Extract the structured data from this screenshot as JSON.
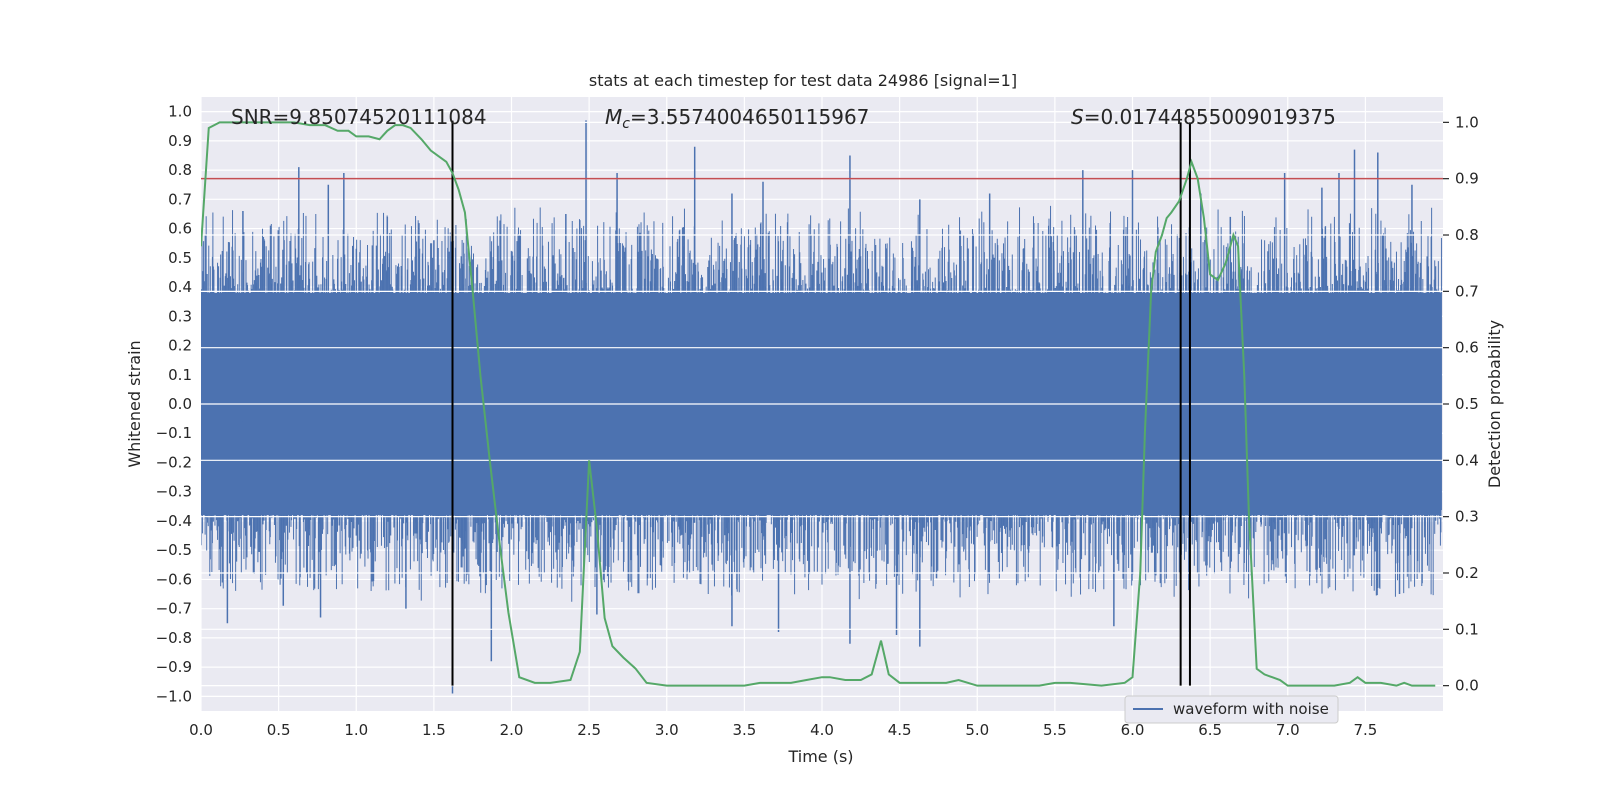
{
  "chart_data": {
    "type": "line",
    "title": "stats at each timestep for test data 24986 [signal=1]",
    "xlabel": "Time (s)",
    "ylabel": "Whitened strain",
    "y2label": "Detection probability",
    "xlim": [
      0,
      8
    ],
    "ylim": [
      -1.05,
      1.05
    ],
    "y2lim": [
      -0.045,
      1.045
    ],
    "xticks": [
      0.0,
      0.5,
      1.0,
      1.5,
      2.0,
      2.5,
      3.0,
      3.5,
      4.0,
      4.5,
      5.0,
      5.5,
      6.0,
      6.5,
      7.0,
      7.5
    ],
    "yticks": [
      -1.0,
      -0.9,
      -0.8,
      -0.7,
      -0.6,
      -0.5,
      -0.4,
      -0.3,
      -0.2,
      -0.1,
      0.0,
      0.1,
      0.2,
      0.3,
      0.4,
      0.5,
      0.6,
      0.7,
      0.8,
      0.9,
      1.0
    ],
    "y2ticks": [
      0.0,
      0.1,
      0.2,
      0.3,
      0.4,
      0.5,
      0.6,
      0.7,
      0.8,
      0.9,
      1.0
    ],
    "grid": true,
    "legend": {
      "location": "lower-right",
      "entries": [
        "waveform with noise"
      ]
    },
    "annotations": {
      "snr": "SNR=9.85074520111084",
      "mc_symbol": "M",
      "mc_sub": "c",
      "mc_value": "=3.5574004650115967",
      "s_symbol": "S",
      "s_value": "=0.01744855009019375"
    },
    "threshold": {
      "axis": "right",
      "value": 0.9,
      "color": "#c44e52"
    },
    "vlines": [
      1.62,
      6.31,
      6.37
    ],
    "waveform": {
      "name": "waveform with noise",
      "color": "#4c72b0",
      "t_start": 0.0,
      "t_end": 7.99,
      "dense_band": [
        -0.38,
        0.38
      ],
      "peaks_upper": [
        [
          0.27,
          0.66
        ],
        [
          0.63,
          0.81
        ],
        [
          0.82,
          0.75
        ],
        [
          0.92,
          0.79
        ],
        [
          1.2,
          0.64
        ],
        [
          1.5,
          0.56
        ],
        [
          1.62,
          0.8
        ],
        [
          2.35,
          0.65
        ],
        [
          2.48,
          0.97
        ],
        [
          2.68,
          0.79
        ],
        [
          3.18,
          0.88
        ],
        [
          3.42,
          0.72
        ],
        [
          3.62,
          0.76
        ],
        [
          4.18,
          0.85
        ],
        [
          4.63,
          0.7
        ],
        [
          5.08,
          0.72
        ],
        [
          5.68,
          0.8
        ],
        [
          6.0,
          0.8
        ],
        [
          6.44,
          0.72
        ],
        [
          6.63,
          0.64
        ],
        [
          6.98,
          0.79
        ],
        [
          7.22,
          0.74
        ],
        [
          7.33,
          0.79
        ],
        [
          7.43,
          0.87
        ],
        [
          7.58,
          0.86
        ],
        [
          7.8,
          0.75
        ]
      ],
      "peaks_lower": [
        [
          0.17,
          -0.75
        ],
        [
          0.27,
          -0.06
        ],
        [
          0.53,
          -0.69
        ],
        [
          0.77,
          -0.73
        ],
        [
          1.32,
          -0.7
        ],
        [
          1.62,
          -0.99
        ],
        [
          1.87,
          -0.88
        ],
        [
          2.55,
          -0.72
        ],
        [
          3.42,
          -0.76
        ],
        [
          3.72,
          -0.78
        ],
        [
          4.18,
          -0.82
        ],
        [
          4.48,
          -0.79
        ],
        [
          4.63,
          -0.83
        ],
        [
          5.88,
          -0.76
        ],
        [
          6.1,
          -0.5
        ],
        [
          7.72,
          -0.65
        ]
      ]
    },
    "probability": {
      "name": "detection probability",
      "color": "#55a868",
      "t": [
        0.0,
        0.05,
        0.12,
        0.2,
        0.3,
        0.4,
        0.5,
        0.6,
        0.7,
        0.8,
        0.88,
        0.95,
        1.0,
        1.08,
        1.15,
        1.2,
        1.25,
        1.3,
        1.35,
        1.42,
        1.48,
        1.53,
        1.58,
        1.62,
        1.66,
        1.7,
        1.75,
        1.8,
        1.86,
        1.92,
        1.98,
        2.05,
        2.15,
        2.25,
        2.38,
        2.44,
        2.5,
        2.55,
        2.6,
        2.65,
        2.72,
        2.8,
        2.87,
        3.0,
        3.2,
        3.5,
        3.6,
        3.8,
        3.9,
        4.0,
        4.05,
        4.15,
        4.25,
        4.32,
        4.38,
        4.43,
        4.5,
        4.6,
        4.8,
        4.88,
        5.0,
        5.2,
        5.4,
        5.5,
        5.6,
        5.8,
        5.95,
        6.0,
        6.05,
        6.08,
        6.12,
        6.15,
        6.19,
        6.22,
        6.25,
        6.3,
        6.35,
        6.38,
        6.42,
        6.46,
        6.5,
        6.55,
        6.6,
        6.65,
        6.68,
        6.72,
        6.75,
        6.8,
        6.85,
        6.9,
        6.95,
        7.0,
        7.1,
        7.3,
        7.4,
        7.45,
        7.5,
        7.6,
        7.7,
        7.75,
        7.8,
        7.95
      ],
      "p": [
        0.78,
        0.99,
        1.0,
        1.0,
        1.0,
        1.0,
        1.0,
        1.0,
        0.995,
        0.995,
        0.985,
        0.985,
        0.975,
        0.975,
        0.97,
        0.985,
        0.995,
        0.995,
        0.99,
        0.97,
        0.95,
        0.94,
        0.93,
        0.91,
        0.88,
        0.84,
        0.7,
        0.55,
        0.4,
        0.26,
        0.13,
        0.015,
        0.005,
        0.005,
        0.01,
        0.06,
        0.4,
        0.28,
        0.12,
        0.07,
        0.05,
        0.03,
        0.005,
        0.0,
        0.0,
        0.0,
        0.005,
        0.005,
        0.01,
        0.015,
        0.015,
        0.01,
        0.01,
        0.02,
        0.08,
        0.02,
        0.005,
        0.005,
        0.005,
        0.01,
        0.0,
        0.0,
        0.0,
        0.005,
        0.005,
        0.0,
        0.005,
        0.015,
        0.2,
        0.45,
        0.7,
        0.77,
        0.8,
        0.83,
        0.84,
        0.86,
        0.9,
        0.93,
        0.9,
        0.83,
        0.73,
        0.72,
        0.75,
        0.8,
        0.78,
        0.55,
        0.3,
        0.03,
        0.02,
        0.015,
        0.01,
        0.0,
        0.0,
        0.0,
        0.005,
        0.015,
        0.005,
        0.005,
        0.0,
        0.005,
        0.0,
        0.0
      ]
    }
  }
}
